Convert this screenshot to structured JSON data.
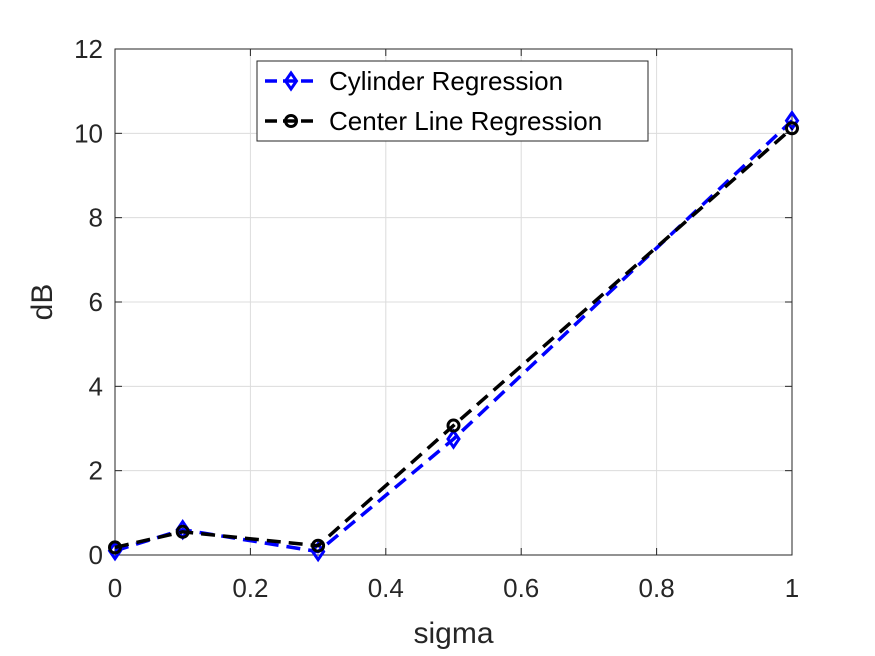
{
  "chart_data": {
    "type": "line",
    "xlabel": "sigma",
    "ylabel": "dB",
    "xlim": [
      0,
      1
    ],
    "ylim": [
      0,
      12
    ],
    "xticks": [
      0,
      0.2,
      0.4,
      0.6,
      0.8,
      1
    ],
    "xtick_labels": [
      "0",
      "0.2",
      "0.4",
      "0.6",
      "0.8",
      "1"
    ],
    "yticks": [
      0,
      2,
      4,
      6,
      8,
      10,
      12
    ],
    "ytick_labels": [
      "0",
      "2",
      "4",
      "6",
      "8",
      "10",
      "12"
    ],
    "grid": true,
    "legend_position": "top-center",
    "series": [
      {
        "name": "Cylinder Regression",
        "color": "#0000ff",
        "marker": "diamond",
        "line_style": "dashed",
        "x": [
          0,
          0.1,
          0.3,
          0.5,
          1
        ],
        "y": [
          0.1,
          0.6,
          0.08,
          2.75,
          10.3
        ]
      },
      {
        "name": "Center Line Regression",
        "color": "#000000",
        "marker": "circle",
        "line_style": "dashed",
        "x": [
          0,
          0.1,
          0.3,
          0.5,
          1
        ],
        "y": [
          0.18,
          0.55,
          0.22,
          3.07,
          10.12
        ]
      }
    ]
  }
}
